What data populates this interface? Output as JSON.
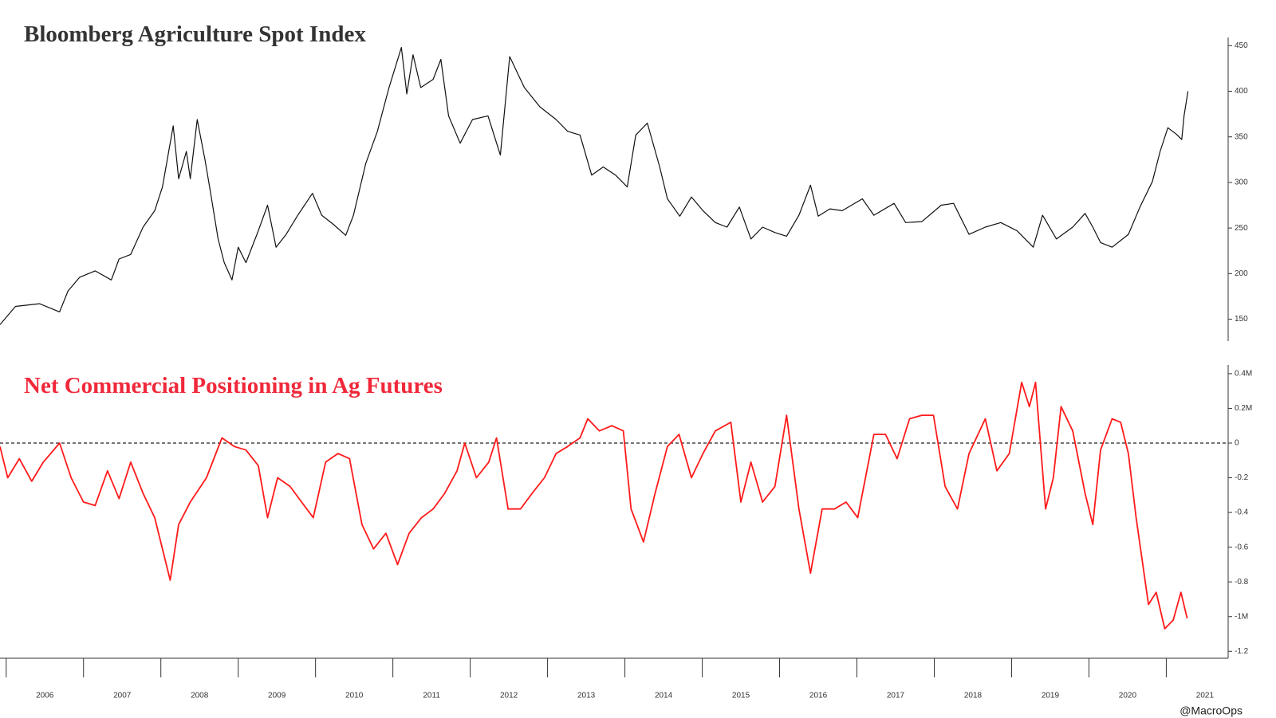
{
  "chart_data": [
    {
      "type": "line",
      "title": "Bloomberg Agriculture Spot Index",
      "x": [
        2005.92,
        2006.12,
        2006.43,
        2006.69,
        2006.8,
        2006.95,
        2007.15,
        2007.36,
        2007.46,
        2007.61,
        2007.77,
        2007.92,
        2008.02,
        2008.16,
        2008.23,
        2008.33,
        2008.38,
        2008.47,
        2008.57,
        2008.64,
        2008.74,
        2008.82,
        2008.92,
        2009.0,
        2009.1,
        2009.26,
        2009.38,
        2009.49,
        2009.62,
        2009.77,
        2009.96,
        2010.08,
        2010.23,
        2010.39,
        2010.49,
        2010.65,
        2010.8,
        2010.95,
        2011.11,
        2011.18,
        2011.26,
        2011.36,
        2011.52,
        2011.62,
        2011.72,
        2011.87,
        2012.03,
        2012.23,
        2012.39,
        2012.51,
        2012.7,
        2012.9,
        2013.11,
        2013.26,
        2013.42,
        2013.57,
        2013.72,
        2013.88,
        2014.03,
        2014.14,
        2014.29,
        2014.45,
        2014.55,
        2014.71,
        2014.86,
        2015.01,
        2015.17,
        2015.32,
        2015.48,
        2015.63,
        2015.78,
        2015.94,
        2016.09,
        2016.25,
        2016.4,
        2016.5,
        2016.65,
        2016.81,
        2017.07,
        2017.22,
        2017.48,
        2017.63,
        2017.84,
        2018.09,
        2018.25,
        2018.45,
        2018.66,
        2018.86,
        2019.07,
        2019.28,
        2019.4,
        2019.58,
        2019.79,
        2019.95,
        2020.05,
        2020.15,
        2020.3,
        2020.51,
        2020.66,
        2020.82,
        2020.92,
        2021.02,
        2021.13,
        2021.2,
        2021.23,
        2021.28
      ],
      "series": [
        {
          "name": "Bloomberg Agriculture Spot Index",
          "color": "#111111",
          "values": [
            144,
            164,
            167,
            158,
            181,
            196,
            203,
            193,
            216,
            221,
            251,
            269,
            295,
            362,
            304,
            334,
            304,
            369,
            325,
            290,
            238,
            212,
            193,
            229,
            212,
            247,
            275,
            229,
            243,
            264,
            288,
            264,
            254,
            242,
            264,
            321,
            356,
            404,
            448,
            397,
            440,
            404,
            413,
            435,
            373,
            343,
            369,
            373,
            330,
            438,
            404,
            383,
            369,
            356,
            352,
            308,
            317,
            308,
            295,
            352,
            365,
            317,
            282,
            263,
            284,
            269,
            256,
            251,
            273,
            238,
            251,
            245,
            241,
            264,
            297,
            263,
            271,
            269,
            282,
            264,
            277,
            256,
            257,
            275,
            277,
            243,
            251,
            256,
            247,
            229,
            264,
            238,
            251,
            266,
            251,
            234,
            229,
            243,
            273,
            301,
            334,
            360,
            353,
            347,
            373,
            400
          ]
        }
      ],
      "xlim": [
        2005.92,
        2021.8
      ],
      "ylim": [
        126,
        459
      ],
      "yticks": [
        150,
        200,
        250,
        300,
        350,
        400,
        450
      ]
    },
    {
      "type": "line",
      "title": "Net Commercial Positioning in Ag Futures",
      "x": [
        2005.92,
        2006.02,
        2006.17,
        2006.33,
        2006.48,
        2006.69,
        2006.84,
        2007.0,
        2007.15,
        2007.31,
        2007.46,
        2007.61,
        2007.77,
        2007.92,
        2008.02,
        2008.12,
        2008.23,
        2008.38,
        2008.59,
        2008.79,
        2008.95,
        2009.1,
        2009.26,
        2009.38,
        2009.51,
        2009.67,
        2009.82,
        2009.97,
        2010.13,
        2010.29,
        2010.44,
        2010.6,
        2010.75,
        2010.91,
        2011.06,
        2011.21,
        2011.37,
        2011.52,
        2011.67,
        2011.83,
        2011.93,
        2012.08,
        2012.24,
        2012.34,
        2012.49,
        2012.65,
        2012.8,
        2012.96,
        2013.11,
        2013.26,
        2013.42,
        2013.52,
        2013.67,
        2013.83,
        2013.98,
        2014.08,
        2014.24,
        2014.39,
        2014.55,
        2014.7,
        2014.86,
        2015.01,
        2015.17,
        2015.37,
        2015.5,
        2015.63,
        2015.78,
        2015.94,
        2016.09,
        2016.25,
        2016.4,
        2016.55,
        2016.71,
        2016.86,
        2017.01,
        2017.22,
        2017.37,
        2017.52,
        2017.68,
        2017.84,
        2017.99,
        2018.14,
        2018.3,
        2018.45,
        2018.66,
        2018.81,
        2018.97,
        2019.13,
        2019.23,
        2019.31,
        2019.44,
        2019.54,
        2019.64,
        2019.79,
        2019.95,
        2020.05,
        2020.15,
        2020.3,
        2020.41,
        2020.51,
        2020.61,
        2020.77,
        2020.87,
        2020.98,
        2021.09,
        2021.19,
        2021.27
      ],
      "series": [
        {
          "name": "Net Commercial Positioning in Ag Futures",
          "color": "#ff1a1a",
          "values": [
            -0.02,
            -0.2,
            -0.09,
            -0.22,
            -0.11,
            0.0,
            -0.2,
            -0.34,
            -0.36,
            -0.16,
            -0.32,
            -0.11,
            -0.29,
            -0.43,
            -0.61,
            -0.79,
            -0.47,
            -0.34,
            -0.2,
            0.03,
            -0.02,
            -0.04,
            -0.13,
            -0.43,
            -0.2,
            -0.25,
            -0.34,
            -0.43,
            -0.11,
            -0.06,
            -0.09,
            -0.47,
            -0.61,
            -0.52,
            -0.7,
            -0.52,
            -0.43,
            -0.38,
            -0.29,
            -0.16,
            0.0,
            -0.2,
            -0.11,
            0.03,
            -0.38,
            -0.38,
            -0.29,
            -0.2,
            -0.06,
            -0.02,
            0.03,
            0.14,
            0.07,
            0.1,
            0.07,
            -0.38,
            -0.57,
            -0.29,
            -0.02,
            0.05,
            -0.2,
            -0.06,
            0.07,
            0.12,
            -0.34,
            -0.11,
            -0.34,
            -0.25,
            0.16,
            -0.38,
            -0.75,
            -0.38,
            -0.38,
            -0.34,
            -0.43,
            0.05,
            0.05,
            -0.09,
            0.14,
            0.16,
            0.16,
            -0.25,
            -0.38,
            -0.06,
            0.14,
            -0.16,
            -0.06,
            0.35,
            0.21,
            0.35,
            -0.38,
            -0.2,
            0.21,
            0.07,
            -0.29,
            -0.47,
            -0.04,
            0.14,
            0.12,
            -0.06,
            -0.43,
            -0.93,
            -0.86,
            -1.07,
            -1.02,
            -0.86,
            -1.01
          ]
        }
      ],
      "xlim": [
        2005.92,
        2021.8
      ],
      "ylim": [
        -1.24,
        0.45
      ],
      "yticks": [
        {
          "value": 0.4,
          "label": "0.4M"
        },
        {
          "value": 0.2,
          "label": "0.2M"
        },
        0,
        -0.2,
        -0.4,
        -0.6,
        -0.8,
        {
          "value": -1,
          "label": "-1M"
        },
        -1.2
      ],
      "xticks": [
        2006,
        2007,
        2008,
        2009,
        2010,
        2011,
        2012,
        2013,
        2014,
        2015,
        2016,
        2017,
        2018,
        2019,
        2020,
        2021
      ],
      "hline": 0
    }
  ],
  "credit": "@MacroOps"
}
